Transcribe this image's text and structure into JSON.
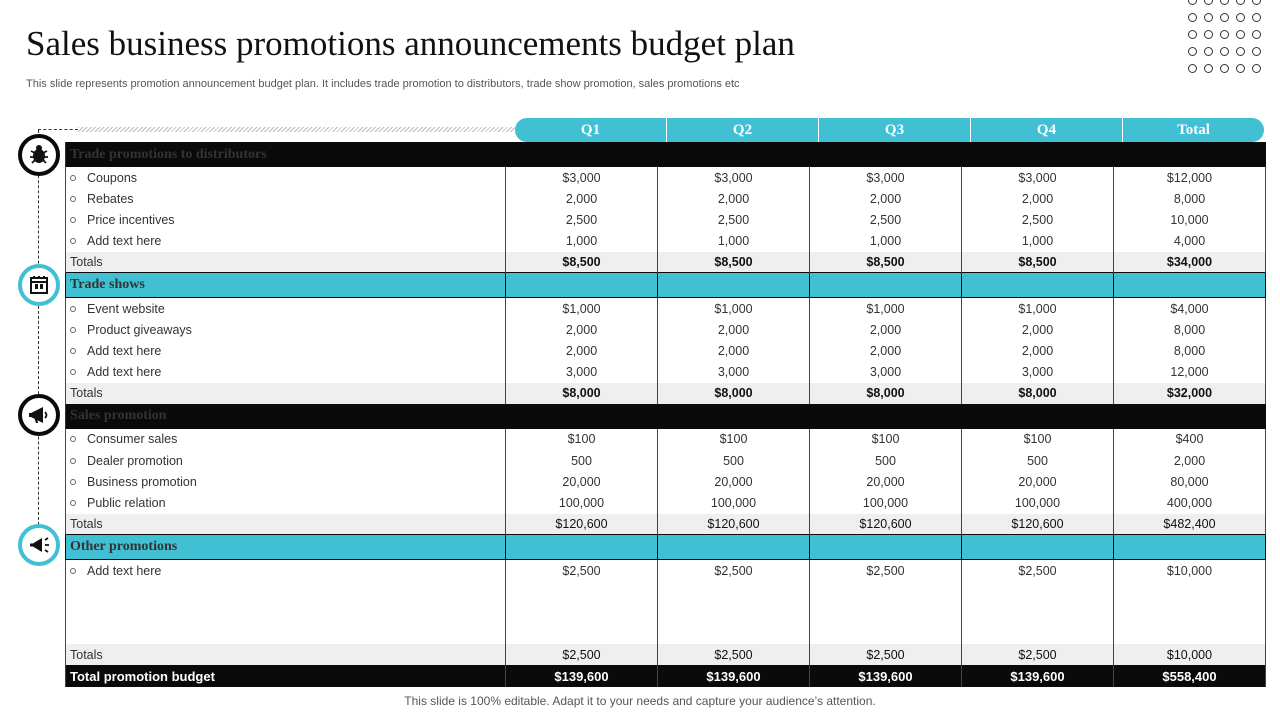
{
  "title": "Sales business promotions announcements budget plan",
  "subtitle": "This slide represents promotion announcement budget plan. It includes trade promotion to distributors, trade show promotion, sales promotions etc",
  "footer": "This slide is 100% editable. Adapt it to your needs and capture your audience’s attention.",
  "columns": [
    "Q1",
    "Q2",
    "Q3",
    "Q4",
    "Total"
  ],
  "sections": [
    {
      "name": "Trade promotions  to distributors",
      "icon": "bug-icon",
      "rows": [
        {
          "label": "Coupons",
          "values": [
            "$3,000",
            "$3,000",
            "$3,000",
            "$3,000",
            "$12,000"
          ]
        },
        {
          "label": "Rebates",
          "values": [
            "2,000",
            "2,000",
            "2,000",
            "2,000",
            "8,000"
          ]
        },
        {
          "label": "Price incentives",
          "values": [
            "2,500",
            "2,500",
            "2,500",
            "2,500",
            "10,000"
          ]
        },
        {
          "label": "Add text here",
          "values": [
            "1,000",
            "1,000",
            "1,000",
            "1,000",
            "4,000"
          ]
        }
      ],
      "totals": {
        "label": "Totals",
        "values": [
          "$8,500",
          "$8,500",
          "$8,500",
          "$8,500",
          "$34,000"
        ]
      }
    },
    {
      "name": "Trade shows",
      "icon": "booth-icon",
      "rows": [
        {
          "label": "Event website",
          "values": [
            "$1,000",
            "$1,000",
            "$1,000",
            "$1,000",
            "$4,000"
          ]
        },
        {
          "label": "Product giveaways",
          "values": [
            "2,000",
            "2,000",
            "2,000",
            "2,000",
            "8,000"
          ]
        },
        {
          "label": "Add text here",
          "values": [
            "2,000",
            "2,000",
            "2,000",
            "2,000",
            "8,000"
          ]
        },
        {
          "label": "Add text here",
          "values": [
            "3,000",
            "3,000",
            "3,000",
            "3,000",
            "12,000"
          ]
        }
      ],
      "totals": {
        "label": "Totals",
        "values": [
          "$8,000",
          "$8,000",
          "$8,000",
          "$8,000",
          "$32,000"
        ]
      }
    },
    {
      "name": "Sales promotion",
      "icon": "megaphone-icon",
      "rows": [
        {
          "label": "Consumer sales",
          "values": [
            "$100",
            "$100",
            "$100",
            "$100",
            "$400"
          ]
        },
        {
          "label": "Dealer  promotion",
          "values": [
            "500",
            "500",
            "500",
            "500",
            "2,000"
          ]
        },
        {
          "label": "Business promotion",
          "values": [
            "20,000",
            "20,000",
            "20,000",
            "20,000",
            "80,000"
          ]
        },
        {
          "label": "Public relation",
          "values": [
            "100,000",
            "100,000",
            "100,000",
            "100,000",
            "400,000"
          ]
        }
      ],
      "totals": {
        "label": "Totals",
        "values": [
          "$120,600",
          "$120,600",
          "$120,600",
          "$120,600",
          "$482,400"
        ]
      }
    },
    {
      "name": "Other promotions",
      "icon": "announcement-icon",
      "rows": [
        {
          "label": "Add text here",
          "values": [
            "$2,500",
            "$2,500",
            "$2,500",
            "$2,500",
            "$10,000"
          ]
        }
      ],
      "totals": {
        "label": "Totals",
        "values": [
          "$2,500",
          "$2,500",
          "$2,500",
          "$2,500",
          "$10,000"
        ]
      }
    }
  ],
  "grand_total": {
    "label": "Total promotion budget",
    "values": [
      "$139,600",
      "$139,600",
      "$139,600",
      "$139,600",
      "$558,400"
    ]
  },
  "colors": {
    "accent": "#41bfd3",
    "dark": "#0a0a0a",
    "totals_bg": "#efefef"
  }
}
